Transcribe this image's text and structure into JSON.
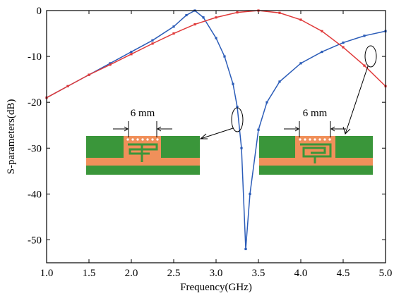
{
  "chart_data": {
    "type": "line",
    "x_label": "Frequency(GHz)",
    "y_label": "S-parameters(dB)",
    "xlim": [
      1.0,
      5.0
    ],
    "ylim": [
      -55,
      0
    ],
    "xticks": [
      {
        "value": 1.0,
        "label": "1.0"
      },
      {
        "value": 1.5,
        "label": "1.5"
      },
      {
        "value": 2.0,
        "label": "2.0"
      },
      {
        "value": 2.5,
        "label": "2.5"
      },
      {
        "value": 3.0,
        "label": "3.0"
      },
      {
        "value": 3.5,
        "label": "3.5"
      },
      {
        "value": 4.0,
        "label": "4.0"
      },
      {
        "value": 4.5,
        "label": "4.5"
      },
      {
        "value": 5.0,
        "label": "5.0"
      }
    ],
    "yticks": [
      0,
      -10,
      -20,
      -30,
      -40,
      -50
    ],
    "markers": true,
    "series": [
      {
        "color": "#2b5cb8",
        "x": [
          1.0,
          1.25,
          1.5,
          1.75,
          2.0,
          2.25,
          2.5,
          2.65,
          2.75,
          2.85,
          3.0,
          3.1,
          3.2,
          3.25,
          3.3,
          3.35,
          3.4,
          3.5,
          3.6,
          3.75,
          4.0,
          4.25,
          4.5,
          4.75,
          5.0
        ],
        "values": [
          -19,
          -16.5,
          -14,
          -11.5,
          -9,
          -6.5,
          -3.5,
          -1,
          0,
          -1.5,
          -6,
          -10,
          -16,
          -21,
          -30,
          -52,
          -40,
          -26,
          -20,
          -15.5,
          -11.5,
          -9,
          -7,
          -5.5,
          -4.5
        ]
      },
      {
        "color": "#e03a3a",
        "x": [
          1.0,
          1.25,
          1.5,
          1.75,
          2.0,
          2.25,
          2.5,
          2.75,
          3.0,
          3.25,
          3.5,
          3.75,
          4.0,
          4.25,
          4.5,
          4.75,
          5.0
        ],
        "values": [
          -19,
          -16.5,
          -14,
          -11.8,
          -9.5,
          -7.2,
          -5,
          -3,
          -1.5,
          -0.4,
          0,
          -0.5,
          -2,
          -4.5,
          -8,
          -12,
          -16.5
        ]
      }
    ],
    "annotations": [
      "6 mm",
      "6 mm"
    ]
  }
}
